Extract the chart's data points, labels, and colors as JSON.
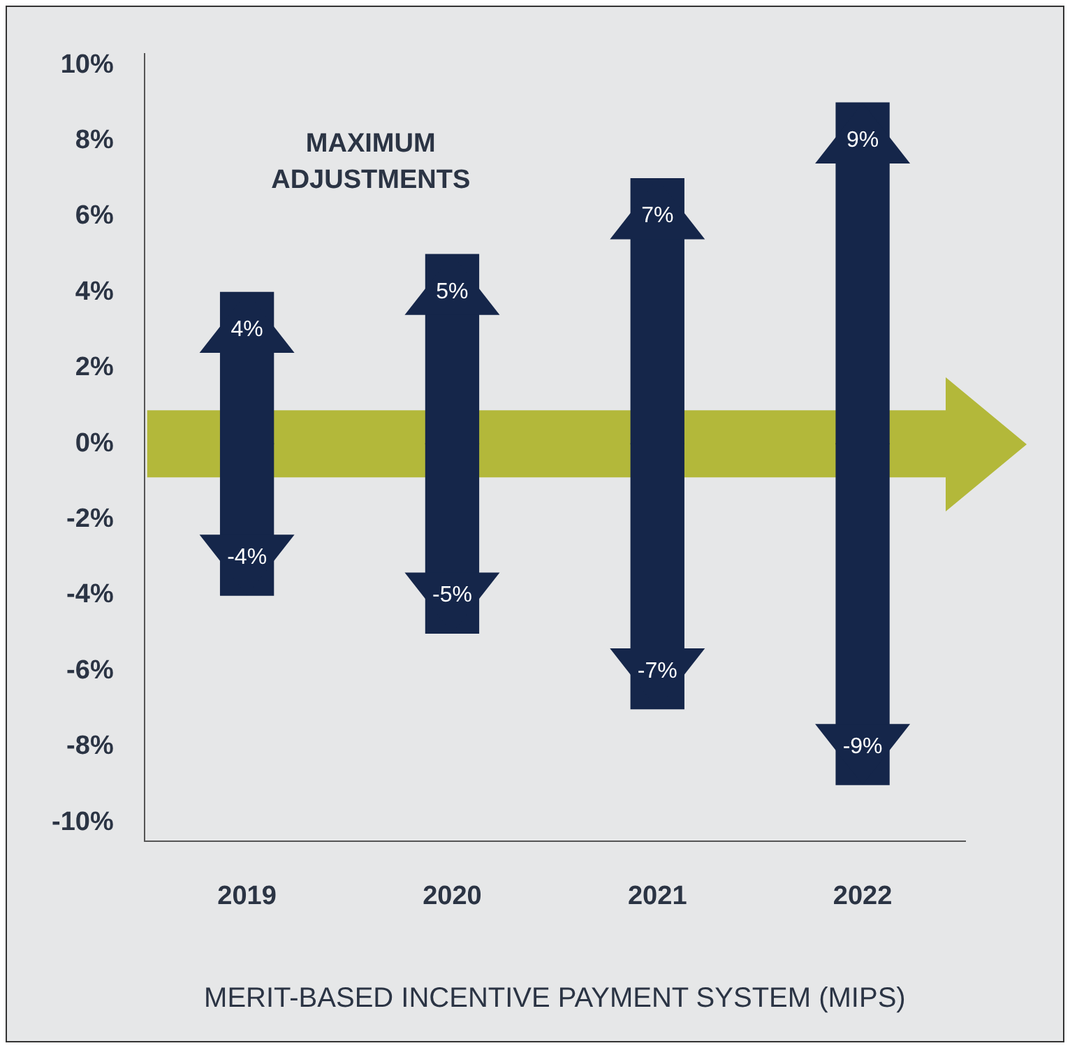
{
  "chart_data": {
    "type": "bar",
    "stacked": true,
    "categories": [
      "2019",
      "2020",
      "2021",
      "2022"
    ],
    "series": [
      {
        "color": "#15264a",
        "values": [
          4,
          5,
          7,
          9
        ],
        "value_labels": [
          "4%",
          "5%",
          "7%",
          "9%"
        ]
      },
      {
        "color": "#15264a",
        "values": [
          -4,
          -5,
          -7,
          -9
        ],
        "value_labels": [
          "-4%",
          "-5%",
          "-7%",
          "-9%"
        ]
      }
    ],
    "ylim": [
      -10.5,
      10.3
    ],
    "yticks": [
      {
        "value": -10,
        "label": "-10%"
      },
      {
        "value": -8,
        "label": "-8%"
      },
      {
        "value": -6,
        "label": "-6%"
      },
      {
        "value": -4,
        "label": "-4%"
      },
      {
        "value": -2,
        "label": "-2%"
      },
      {
        "value": 0,
        "label": "0%"
      },
      {
        "value": 2,
        "label": "2%"
      },
      {
        "value": 4,
        "label": "4%"
      },
      {
        "value": 6,
        "label": "6%"
      },
      {
        "value": 8,
        "label": "8%"
      },
      {
        "value": 10,
        "label": "10%"
      }
    ],
    "grid": false,
    "xlabel": "MERIT-BASED INCENTIVE PAYMENT SYSTEM (MIPS)",
    "annotations": [
      "MAXIMUM ADJUSTMENTS"
    ],
    "ref_lines": [
      {
        "axis": "y",
        "value": 0,
        "color": "#b3b83a"
      }
    ]
  }
}
